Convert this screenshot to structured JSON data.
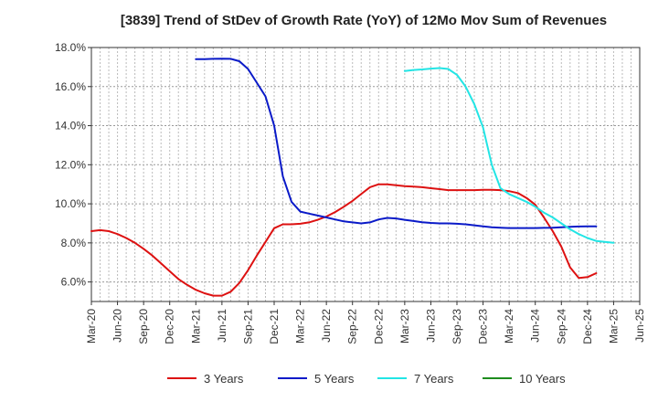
{
  "chart_data": {
    "type": "line",
    "title": "[3839]  Trend of StDev of Growth Rate (YoY) of 12Mo Mov Sum of Revenues",
    "xlabel": "",
    "ylabel": "",
    "ylim": [
      5.0,
      18.0
    ],
    "y_ticks": [
      6.0,
      8.0,
      10.0,
      12.0,
      14.0,
      16.0,
      18.0
    ],
    "y_tick_labels": [
      "6.0%",
      "8.0%",
      "10.0%",
      "12.0%",
      "14.0%",
      "16.0%",
      "18.0%"
    ],
    "x_tick_labels": [
      "Mar-20",
      "Jun-20",
      "Sep-20",
      "Dec-20",
      "Mar-21",
      "Jun-21",
      "Sep-21",
      "Dec-21",
      "Mar-22",
      "Jun-22",
      "Sep-22",
      "Dec-22",
      "Mar-23",
      "Jun-23",
      "Sep-23",
      "Dec-23",
      "Mar-24",
      "Jun-24",
      "Sep-24",
      "Dec-24",
      "Mar-25",
      "Jun-25"
    ],
    "x_start": "Mar-20",
    "n_months": 63,
    "grid": true,
    "legend_position": "bottom",
    "series": [
      {
        "name": "3 Years",
        "color": "#dd1111",
        "start_index": 0,
        "values": [
          8.6,
          8.65,
          8.6,
          8.45,
          8.25,
          8.0,
          7.7,
          7.35,
          6.95,
          6.55,
          6.15,
          5.85,
          5.6,
          5.42,
          5.3,
          5.3,
          5.5,
          5.95,
          6.6,
          7.35,
          8.05,
          8.75,
          8.95,
          8.95,
          8.98,
          9.05,
          9.18,
          9.35,
          9.58,
          9.85,
          10.15,
          10.5,
          10.85,
          11.0,
          11.0,
          10.95,
          10.9,
          10.88,
          10.85,
          10.8,
          10.75,
          10.7,
          10.7,
          10.7,
          10.7,
          10.72,
          10.72,
          10.7,
          10.65,
          10.55,
          10.3,
          9.95,
          9.3,
          8.6,
          7.8,
          6.75,
          6.2,
          6.25,
          6.45
        ]
      },
      {
        "name": "5 Years",
        "color": "#0a1ac8",
        "start_index": 12,
        "values": [
          17.4,
          17.4,
          17.42,
          17.43,
          17.42,
          17.3,
          16.9,
          16.2,
          15.5,
          14.0,
          11.4,
          10.1,
          9.6,
          9.5,
          9.4,
          9.3,
          9.2,
          9.1,
          9.05,
          9.0,
          9.05,
          9.2,
          9.28,
          9.25,
          9.18,
          9.12,
          9.06,
          9.02,
          9.0,
          9.0,
          8.98,
          8.95,
          8.9,
          8.85,
          8.8,
          8.78,
          8.76,
          8.76,
          8.76,
          8.76,
          8.77,
          8.78,
          8.8,
          8.82,
          8.84,
          8.85,
          8.85
        ]
      },
      {
        "name": "7 Years",
        "color": "#22e5e5",
        "start_index": 36,
        "values": [
          16.8,
          16.85,
          16.88,
          16.92,
          16.95,
          16.9,
          16.6,
          16.0,
          15.1,
          13.9,
          12.0,
          10.8,
          10.5,
          10.3,
          10.1,
          9.85,
          9.55,
          9.3,
          9.0,
          8.7,
          8.45,
          8.25,
          8.1,
          8.05,
          8.0
        ]
      },
      {
        "name": "10 Years",
        "color": "#1e8c1e",
        "start_index": 0,
        "values": []
      }
    ]
  }
}
